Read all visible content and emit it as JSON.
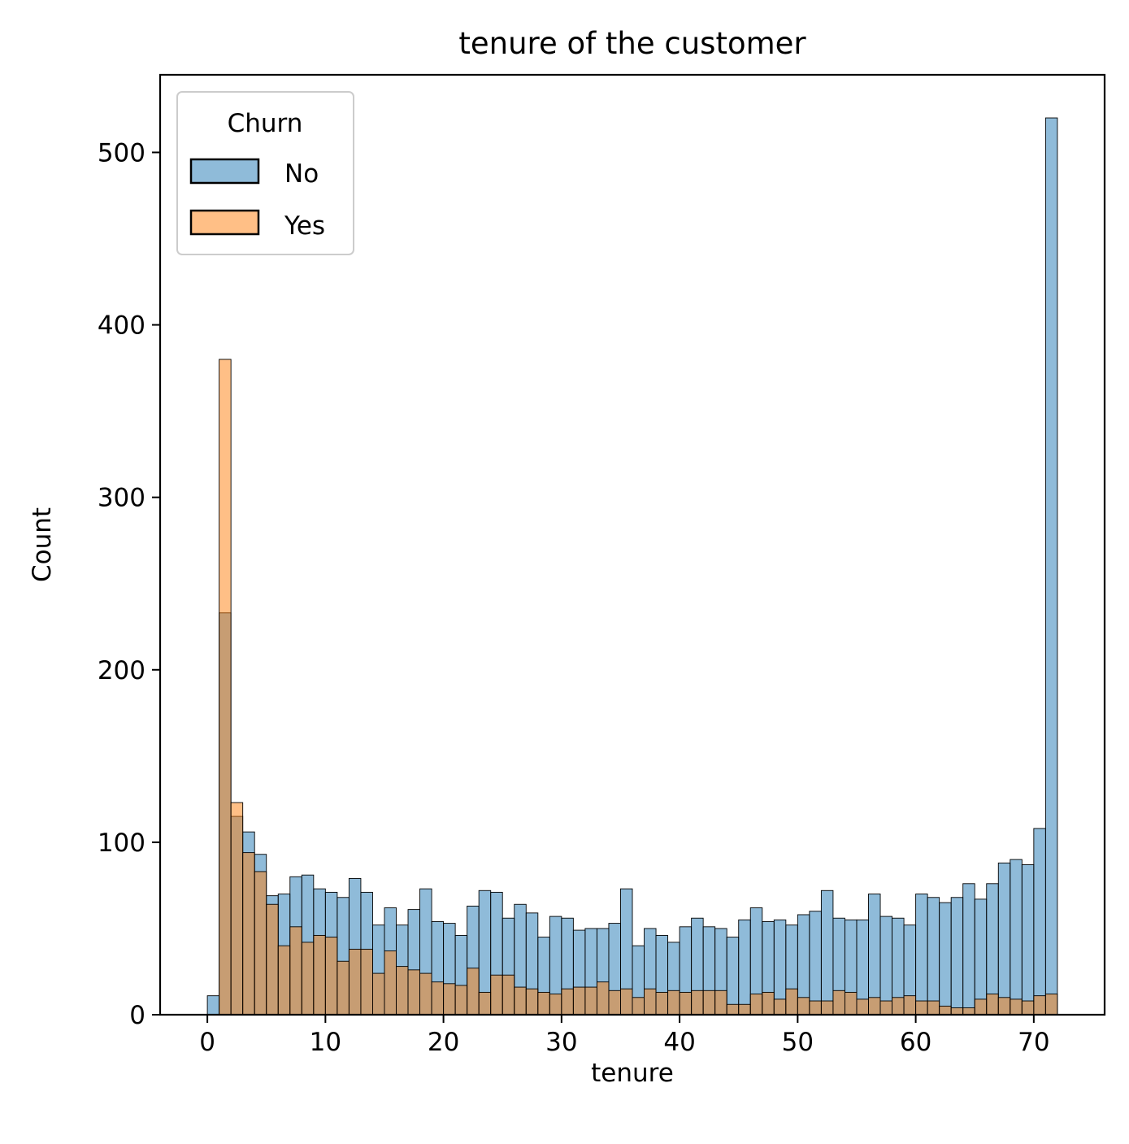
{
  "chart_data": {
    "type": "bar",
    "subtype": "overlaid histogram",
    "title": "tenure of the customer",
    "xlabel": "tenure",
    "ylabel": "Count",
    "xlim": [
      -4,
      76
    ],
    "ylim": [
      0,
      545
    ],
    "xticks": [
      0,
      10,
      20,
      30,
      40,
      50,
      60,
      70
    ],
    "yticks": [
      0,
      100,
      200,
      300,
      400,
      500
    ],
    "bin_edges_start": 0,
    "bin_width": 1,
    "grid": false,
    "legend": {
      "title": "Churn",
      "placement": "top-left"
    },
    "series": [
      {
        "name": "No",
        "color": "#1f77b4",
        "opacity": 0.5,
        "values": [
          11,
          233,
          115,
          106,
          93,
          69,
          70,
          80,
          81,
          73,
          71,
          68,
          79,
          71,
          52,
          62,
          52,
          61,
          73,
          54,
          53,
          46,
          63,
          72,
          71,
          56,
          64,
          59,
          45,
          57,
          56,
          49,
          50,
          50,
          53,
          73,
          40,
          50,
          46,
          42,
          51,
          56,
          51,
          50,
          45,
          55,
          62,
          54,
          55,
          52,
          58,
          60,
          72,
          56,
          55,
          55,
          70,
          57,
          56,
          52,
          70,
          68,
          65,
          68,
          76,
          67,
          76,
          88,
          90,
          87,
          108,
          520
        ]
      },
      {
        "name": "Yes",
        "color": "#ff7f0e",
        "opacity": 0.5,
        "values": [
          0,
          380,
          123,
          94,
          83,
          64,
          40,
          51,
          42,
          46,
          45,
          31,
          38,
          38,
          24,
          37,
          28,
          26,
          24,
          19,
          18,
          17,
          27,
          13,
          23,
          23,
          16,
          15,
          13,
          12,
          15,
          16,
          16,
          19,
          14,
          15,
          10,
          15,
          13,
          14,
          13,
          14,
          14,
          14,
          6,
          6,
          12,
          13,
          9,
          15,
          10,
          8,
          8,
          14,
          13,
          9,
          10,
          8,
          10,
          11,
          8,
          8,
          5,
          4,
          4,
          9,
          12,
          10,
          9,
          8,
          11,
          12
        ]
      }
    ]
  }
}
